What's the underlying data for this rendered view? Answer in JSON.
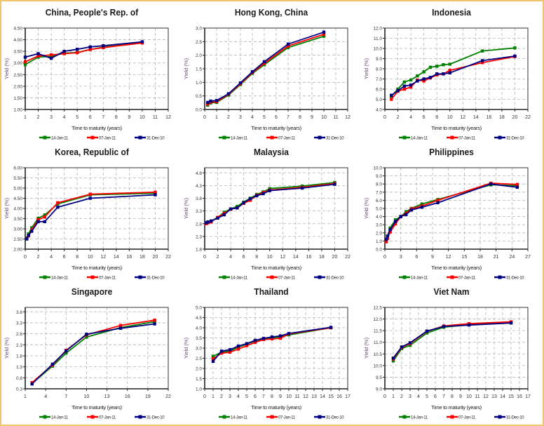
{
  "legend_labels": [
    "14-Jan-11",
    "07-Jan-11",
    "31-Dec-10"
  ],
  "series_colors": [
    "#008000",
    "#ff0000",
    "#000080"
  ],
  "chart_data": [
    {
      "type": "line",
      "title": "China, People's Rep. of",
      "xlabel": "Time to maturity (years)",
      "ylabel": "Yield (%)",
      "xlim": [
        1,
        12
      ],
      "xticks": [
        1,
        2,
        3,
        4,
        5,
        6,
        7,
        8,
        9,
        10,
        11,
        12
      ],
      "ylim": [
        1.0,
        4.5
      ],
      "yticks": [
        "1.00",
        "1.50",
        "2.00",
        "2.50",
        "3.00",
        "3.50",
        "4.00",
        "4.50"
      ],
      "grid": true,
      "legend": "bottom",
      "series": [
        {
          "name": "14-Jan-11",
          "x": [
            1,
            2,
            3,
            4,
            5,
            6,
            7,
            10
          ],
          "values": [
            2.93,
            3.25,
            3.28,
            3.42,
            3.45,
            3.58,
            3.68,
            3.87
          ]
        },
        {
          "name": "07-Jan-11",
          "x": [
            1,
            2,
            3,
            4,
            5,
            6,
            7,
            10
          ],
          "values": [
            3.05,
            3.3,
            3.35,
            3.4,
            3.44,
            3.58,
            3.66,
            3.86
          ]
        },
        {
          "name": "31-Dec-10",
          "x": [
            1,
            2,
            3,
            4,
            5,
            6,
            7,
            10
          ],
          "values": [
            3.25,
            3.4,
            3.2,
            3.5,
            3.59,
            3.69,
            3.74,
            3.91
          ]
        }
      ]
    },
    {
      "type": "line",
      "title": "Hong Kong, China",
      "xlabel": "Time to maturity (years)",
      "ylabel": "Yield (%)",
      "xlim": [
        0,
        12
      ],
      "xticks": [
        0,
        1,
        2,
        3,
        4,
        5,
        6,
        7,
        8,
        9,
        10,
        11,
        12
      ],
      "ylim": [
        0.0,
        3.0
      ],
      "yticks": [
        "0.0",
        "0.5",
        "1.0",
        "1.5",
        "2.0",
        "2.5",
        "3.0"
      ],
      "grid": true,
      "legend": "bottom",
      "series": [
        {
          "name": "14-Jan-11",
          "x": [
            0.25,
            0.5,
            1,
            2,
            3,
            4,
            5,
            7,
            10
          ],
          "values": [
            0.16,
            0.24,
            0.26,
            0.53,
            0.92,
            1.33,
            1.65,
            2.28,
            2.7
          ]
        },
        {
          "name": "07-Jan-11",
          "x": [
            0.25,
            0.5,
            1,
            2,
            3,
            4,
            5,
            7,
            10
          ],
          "values": [
            0.2,
            0.27,
            0.29,
            0.56,
            0.95,
            1.36,
            1.7,
            2.34,
            2.77
          ]
        },
        {
          "name": "31-Dec-10",
          "x": [
            0.25,
            0.5,
            1,
            2,
            3,
            4,
            5,
            7,
            10
          ],
          "values": [
            0.26,
            0.31,
            0.33,
            0.58,
            0.98,
            1.39,
            1.76,
            2.41,
            2.85
          ]
        }
      ]
    },
    {
      "type": "line",
      "title": "Indonesia",
      "xlabel": "Time to maturity (years)",
      "ylabel": "Yield (%)",
      "xlim": [
        0,
        22
      ],
      "xticks": [
        0,
        2,
        4,
        6,
        8,
        10,
        12,
        14,
        16,
        18,
        20,
        22
      ],
      "ylim": [
        4.0,
        12.0
      ],
      "yticks": [
        "4.0",
        "5.0",
        "6.0",
        "7.0",
        "8.0",
        "9.0",
        "10.0",
        "11.0",
        "12.0"
      ],
      "grid": true,
      "legend": "bottom",
      "series": [
        {
          "name": "14-Jan-11",
          "x": [
            1,
            2,
            3,
            4,
            5,
            6,
            7,
            8,
            9,
            10,
            15,
            20
          ],
          "values": [
            5.3,
            6.0,
            6.7,
            6.9,
            7.3,
            7.7,
            8.15,
            8.25,
            8.4,
            8.45,
            9.75,
            10.05
          ]
        },
        {
          "name": "07-Jan-11",
          "x": [
            1,
            2,
            3,
            4,
            5,
            6,
            7,
            8,
            9,
            10,
            15,
            20
          ],
          "values": [
            5.0,
            5.8,
            6.0,
            6.2,
            6.9,
            6.8,
            7.1,
            7.4,
            7.5,
            7.85,
            8.6,
            9.2
          ]
        },
        {
          "name": "31-Dec-10",
          "x": [
            1,
            2,
            3,
            4,
            5,
            6,
            7,
            8,
            9,
            10,
            15,
            20
          ],
          "values": [
            5.4,
            5.85,
            6.3,
            6.4,
            6.8,
            7.0,
            7.15,
            7.5,
            7.5,
            7.6,
            8.8,
            9.25
          ]
        }
      ]
    },
    {
      "type": "line",
      "title": "Korea, Republic of",
      "xlabel": "Time to maturity (years)",
      "ylabel": "Yield (%)",
      "xlim": [
        0,
        22
      ],
      "xticks": [
        0,
        2,
        4,
        6,
        8,
        10,
        12,
        14,
        16,
        18,
        20,
        22
      ],
      "ylim": [
        2.0,
        6.0
      ],
      "yticks": [
        "2.00",
        "2.50",
        "3.00",
        "3.50",
        "4.00",
        "4.50",
        "5.00",
        "5.50",
        "6.00"
      ],
      "grid": true,
      "legend": "bottom",
      "series": [
        {
          "name": "14-Jan-11",
          "x": [
            0.25,
            0.5,
            1,
            2,
            3,
            5,
            10,
            20
          ],
          "values": [
            2.55,
            2.75,
            3.05,
            3.52,
            3.68,
            4.22,
            4.67,
            4.75
          ]
        },
        {
          "name": "07-Jan-11",
          "x": [
            0.25,
            0.5,
            1,
            2,
            3,
            5,
            10,
            20
          ],
          "values": [
            2.52,
            2.65,
            2.95,
            3.45,
            3.58,
            4.28,
            4.7,
            4.8
          ]
        },
        {
          "name": "31-Dec-10",
          "x": [
            0.25,
            0.5,
            1,
            2,
            3,
            5,
            10,
            20
          ],
          "values": [
            2.5,
            2.68,
            2.88,
            3.35,
            3.35,
            4.06,
            4.5,
            4.67
          ]
        }
      ]
    },
    {
      "type": "line",
      "title": "Malaysia",
      "xlabel": "Time to maturity (years)",
      "ylabel": "Yield (%)",
      "xlim": [
        0,
        22
      ],
      "xticks": [
        0,
        2,
        4,
        6,
        8,
        10,
        12,
        14,
        16,
        18,
        20,
        22
      ],
      "ylim": [
        1.8,
        5.0
      ],
      "yticks": [
        "1.8",
        "2.3",
        "2.8",
        "3.3",
        "3.8",
        "4.3",
        "4.8"
      ],
      "grid": true,
      "legend": "bottom",
      "series": [
        {
          "name": "14-Jan-11",
          "x": [
            0.25,
            0.5,
            1,
            2,
            3,
            4,
            5,
            6,
            7,
            8,
            9,
            10,
            15,
            20
          ],
          "values": [
            2.82,
            2.85,
            2.9,
            3.05,
            3.25,
            3.38,
            3.48,
            3.65,
            3.8,
            3.95,
            4.05,
            4.18,
            4.28,
            4.42
          ]
        },
        {
          "name": "07-Jan-11",
          "x": [
            0.25,
            0.5,
            1,
            2,
            3,
            4,
            5,
            6,
            7,
            8,
            9,
            10,
            15,
            20
          ],
          "values": [
            2.8,
            2.84,
            2.87,
            3.05,
            3.2,
            3.37,
            3.42,
            3.6,
            3.72,
            3.92,
            4.02,
            4.12,
            4.23,
            4.38
          ]
        },
        {
          "name": "31-Dec-10",
          "x": [
            0.25,
            0.5,
            1,
            2,
            3,
            4,
            5,
            6,
            7,
            8,
            9,
            10,
            15,
            20
          ],
          "values": [
            2.84,
            2.87,
            2.91,
            3.02,
            3.15,
            3.38,
            3.42,
            3.62,
            3.78,
            3.9,
            3.98,
            4.1,
            4.2,
            4.35
          ]
        }
      ]
    },
    {
      "type": "line",
      "title": "Philippines",
      "xlabel": "Time to maturity (years)",
      "ylabel": "Yield (%)",
      "xlim": [
        0,
        27
      ],
      "xticks": [
        0,
        3,
        6,
        9,
        12,
        15,
        18,
        21,
        24,
        27
      ],
      "ylim": [
        0.0,
        10.0
      ],
      "yticks": [
        "0.0",
        "1.0",
        "2.0",
        "3.0",
        "4.0",
        "5.0",
        "6.0",
        "7.0",
        "8.0",
        "9.0",
        "10.0"
      ],
      "grid": true,
      "legend": "bottom",
      "series": [
        {
          "name": "14-Jan-11",
          "x": [
            0.25,
            0.5,
            1,
            2,
            3,
            4,
            5,
            7,
            10,
            20,
            25
          ],
          "values": [
            1.1,
            1.6,
            2.6,
            3.6,
            4.0,
            4.6,
            5.0,
            5.55,
            6.1,
            7.9,
            7.8
          ]
        },
        {
          "name": "07-Jan-11",
          "x": [
            0.25,
            0.5,
            1,
            2,
            3,
            4,
            5,
            7,
            10,
            20,
            25
          ],
          "values": [
            0.9,
            1.3,
            2.1,
            3.1,
            4.0,
            4.4,
            4.95,
            5.3,
            6.0,
            8.1,
            7.95
          ]
        },
        {
          "name": "31-Dec-10",
          "x": [
            0.25,
            0.5,
            1,
            2,
            3,
            4,
            5,
            7,
            10,
            20,
            25
          ],
          "values": [
            1.2,
            1.6,
            2.4,
            3.4,
            4.0,
            4.25,
            4.8,
            5.15,
            5.7,
            8.0,
            7.6
          ]
        }
      ]
    },
    {
      "type": "line",
      "title": "Singapore",
      "xlabel": "Time to maturity (years)",
      "ylabel": "Yield (%)",
      "xlim": [
        1,
        22
      ],
      "xticks": [
        1,
        4,
        7,
        10,
        13,
        16,
        19,
        22
      ],
      "ylim": [
        0.3,
        4.0
      ],
      "yticks": [
        "0.3",
        "0.8",
        "1.3",
        "1.8",
        "2.3",
        "2.8",
        "3.3",
        "3.8"
      ],
      "grid": true,
      "legend": "bottom",
      "series": [
        {
          "name": "14-Jan-11",
          "x": [
            2,
            5,
            7,
            10,
            15,
            20
          ],
          "values": [
            0.55,
            1.33,
            1.92,
            2.65,
            3.08,
            3.35
          ]
        },
        {
          "name": "07-Jan-11",
          "x": [
            2,
            5,
            7,
            10,
            15,
            20
          ],
          "values": [
            0.58,
            1.38,
            2.05,
            2.75,
            3.18,
            3.42
          ]
        },
        {
          "name": "31-Dec-10",
          "x": [
            2,
            5,
            7,
            10,
            15,
            20
          ],
          "values": [
            0.52,
            1.42,
            2.02,
            2.78,
            3.05,
            3.25
          ]
        }
      ]
    },
    {
      "type": "line",
      "title": "Thailand",
      "xlabel": "Time to maturity (years)",
      "ylabel": "Yield (%)",
      "xlim": [
        0,
        17
      ],
      "xticks": [
        0,
        1,
        2,
        3,
        4,
        5,
        6,
        7,
        8,
        9,
        10,
        11,
        12,
        13,
        14,
        15,
        16,
        17
      ],
      "ylim": [
        1.0,
        5.0
      ],
      "yticks": [
        "1.0",
        "1.5",
        "2.0",
        "2.5",
        "3.0",
        "3.5",
        "4.0",
        "4.5",
        "5.0"
      ],
      "grid": true,
      "legend": "bottom",
      "series": [
        {
          "name": "14-Jan-11",
          "x": [
            1,
            2,
            3,
            4,
            5,
            6,
            7,
            8,
            9,
            10,
            15
          ],
          "values": [
            2.6,
            2.8,
            2.85,
            3.05,
            3.2,
            3.35,
            3.45,
            3.5,
            3.55,
            3.65,
            4.0
          ]
        },
        {
          "name": "07-Jan-11",
          "x": [
            1,
            2,
            3,
            4,
            5,
            6,
            7,
            8,
            9,
            10,
            15
          ],
          "values": [
            2.48,
            2.75,
            2.8,
            2.95,
            3.12,
            3.28,
            3.42,
            3.45,
            3.48,
            3.7,
            4.0
          ]
        },
        {
          "name": "31-Dec-10",
          "x": [
            1,
            2,
            3,
            4,
            5,
            6,
            7,
            8,
            9,
            10,
            15
          ],
          "values": [
            2.35,
            2.85,
            2.92,
            3.1,
            3.22,
            3.38,
            3.48,
            3.55,
            3.6,
            3.72,
            4.02
          ]
        }
      ]
    },
    {
      "type": "line",
      "title": "Viet Nam",
      "xlabel": "Time to maturity (years)",
      "ylabel": "Yield (%)",
      "xlim": [
        0,
        17
      ],
      "xticks": [
        0,
        1,
        2,
        3,
        4,
        5,
        6,
        7,
        8,
        9,
        10,
        11,
        12,
        13,
        14,
        15,
        16,
        17
      ],
      "ylim": [
        9.0,
        12.5
      ],
      "yticks": [
        "9.0",
        "9.5",
        "10.0",
        "10.5",
        "11.0",
        "11.5",
        "12.0",
        "12.5"
      ],
      "grid": true,
      "legend": "bottom",
      "series": [
        {
          "name": "14-Jan-11",
          "x": [
            1,
            2,
            3,
            5,
            7,
            10,
            15
          ],
          "values": [
            10.2,
            10.73,
            10.87,
            11.4,
            11.65,
            11.75,
            11.85
          ]
        },
        {
          "name": "07-Jan-11",
          "x": [
            1,
            2,
            3,
            5,
            7,
            10,
            15
          ],
          "values": [
            10.28,
            10.78,
            10.95,
            11.47,
            11.7,
            11.8,
            11.88
          ]
        },
        {
          "name": "31-Dec-10",
          "x": [
            1,
            2,
            3,
            5,
            7,
            10,
            15
          ],
          "values": [
            10.32,
            10.8,
            10.98,
            11.48,
            11.68,
            11.74,
            11.83
          ]
        }
      ]
    }
  ]
}
